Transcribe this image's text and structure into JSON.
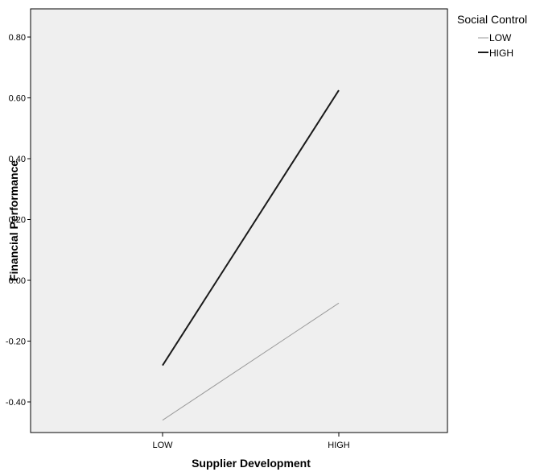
{
  "chart_data": {
    "type": "line",
    "xlabel": "Supplier Development",
    "ylabel": "Financial Performance",
    "categories": [
      "LOW",
      "HIGH"
    ],
    "ylim": [
      -0.5,
      0.85
    ],
    "yticks": [
      -0.4,
      -0.2,
      0.0,
      0.2,
      0.4,
      0.6,
      0.8
    ],
    "ytick_labels": [
      "-0.40",
      "-0.20",
      "0.00",
      "0.20",
      "0.40",
      "0.60",
      "0.80"
    ],
    "grid": false,
    "legend": {
      "title": "Social Control",
      "placement": "outside-top-right"
    },
    "series": [
      {
        "name": "LOW",
        "values": [
          -0.46,
          -0.075
        ],
        "color": "#999999"
      },
      {
        "name": "HIGH",
        "values": [
          -0.28,
          0.625
        ],
        "color": "#1a1a1a"
      }
    ]
  },
  "colors": {
    "plot_background": "#efefef",
    "axis": "#000000"
  }
}
